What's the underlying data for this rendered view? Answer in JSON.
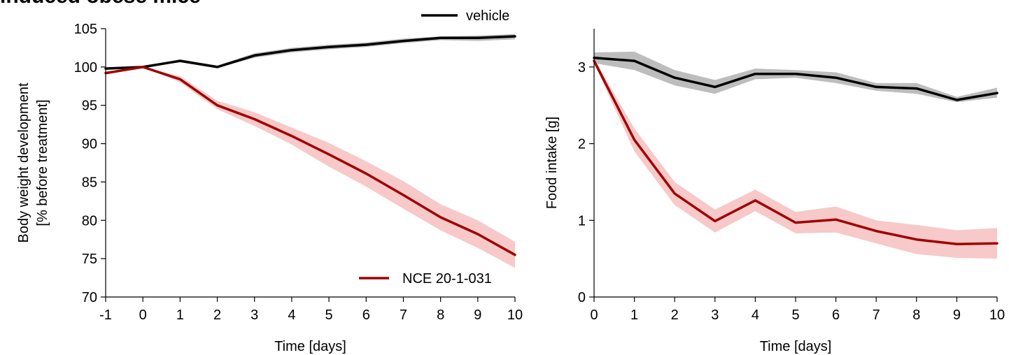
{
  "figure_title": "induced obese mice",
  "chart_data": [
    {
      "type": "line",
      "xlabel": "Time [days]",
      "ylabel_line1": "Body weight development",
      "ylabel_line2": "[% before treatment]",
      "xlim": [
        -1,
        10
      ],
      "ylim": [
        70,
        105
      ],
      "xticks": [
        -1,
        0,
        1,
        2,
        3,
        4,
        5,
        6,
        7,
        8,
        9,
        10
      ],
      "yticks": [
        70,
        75,
        80,
        85,
        90,
        95,
        100,
        105
      ],
      "x": [
        -1,
        0,
        1,
        2,
        3,
        4,
        5,
        6,
        7,
        8,
        9,
        10
      ],
      "series": [
        {
          "name": "vehicle",
          "color": "#000000",
          "band_color": "#bdbdbd",
          "values": [
            99.8,
            100.0,
            100.8,
            100.0,
            101.5,
            102.2,
            102.6,
            102.9,
            103.4,
            103.8,
            103.8,
            104.0
          ],
          "lower": [
            99.7,
            100.0,
            100.6,
            99.9,
            101.2,
            101.9,
            102.3,
            102.6,
            103.1,
            103.5,
            103.4,
            103.6
          ],
          "upper": [
            99.9,
            100.0,
            101.0,
            100.2,
            101.8,
            102.5,
            102.9,
            103.2,
            103.7,
            104.0,
            104.1,
            104.3
          ]
        },
        {
          "name": "NCE 20-1-031",
          "color": "#a00000",
          "band_color": "#f7c9c9",
          "values": [
            99.2,
            100.0,
            98.4,
            95.0,
            93.2,
            91.0,
            88.6,
            86.1,
            83.3,
            80.4,
            78.2,
            75.5
          ],
          "lower": [
            99.0,
            100.0,
            98.0,
            94.5,
            92.3,
            89.9,
            87.0,
            84.4,
            81.5,
            78.7,
            76.4,
            73.8
          ],
          "upper": [
            99.4,
            100.0,
            98.8,
            95.6,
            94.1,
            92.1,
            90.1,
            87.7,
            85.1,
            82.1,
            80.0,
            77.2
          ]
        }
      ],
      "legend": [
        {
          "label": "vehicle",
          "color": "#000000",
          "placement": "top-right"
        },
        {
          "label": "NCE 20-1-031",
          "color": "#a00000",
          "placement": "bottom-right"
        }
      ]
    },
    {
      "type": "line",
      "xlabel": "Time [days]",
      "ylabel": "Food intake [g]",
      "xlim": [
        0,
        10
      ],
      "ylim": [
        0,
        3.5
      ],
      "xticks": [
        0,
        1,
        2,
        3,
        4,
        5,
        6,
        7,
        8,
        9,
        10
      ],
      "yticks": [
        0,
        1,
        2,
        3
      ],
      "x": [
        0,
        1,
        2,
        3,
        4,
        5,
        6,
        7,
        8,
        9,
        10
      ],
      "series": [
        {
          "name": "vehicle",
          "color": "#000000",
          "band_color": "#bdbdbd",
          "values": [
            3.12,
            3.08,
            2.86,
            2.74,
            2.91,
            2.91,
            2.86,
            2.74,
            2.72,
            2.57,
            2.66
          ],
          "lower": [
            3.05,
            2.96,
            2.76,
            2.65,
            2.84,
            2.86,
            2.79,
            2.69,
            2.65,
            2.54,
            2.6
          ],
          "upper": [
            3.19,
            3.2,
            2.96,
            2.83,
            2.98,
            2.96,
            2.93,
            2.79,
            2.79,
            2.61,
            2.73
          ]
        },
        {
          "name": "NCE 20-1-031",
          "color": "#a00000",
          "band_color": "#f7c9c9",
          "values": [
            3.08,
            2.05,
            1.35,
            0.99,
            1.26,
            0.97,
            1.01,
            0.86,
            0.75,
            0.69,
            0.7
          ],
          "lower": [
            3.05,
            1.9,
            1.2,
            0.84,
            1.12,
            0.83,
            0.84,
            0.7,
            0.56,
            0.51,
            0.5
          ],
          "upper": [
            3.11,
            2.2,
            1.5,
            1.14,
            1.4,
            1.11,
            1.18,
            1.0,
            0.94,
            0.87,
            0.9
          ]
        }
      ]
    }
  ]
}
